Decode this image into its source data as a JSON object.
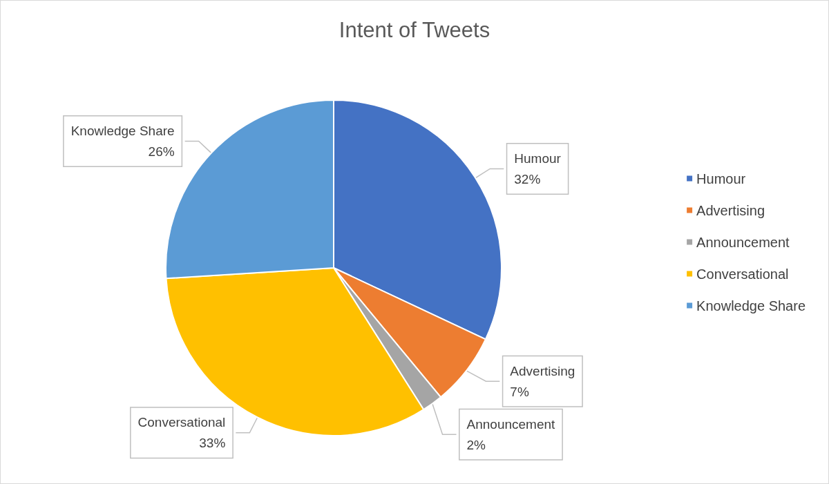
{
  "chart_data": {
    "type": "pie",
    "title": "Intent of Tweets",
    "categories": [
      "Humour",
      "Advertising",
      "Announcement",
      "Conversational",
      "Knowledge Share"
    ],
    "values": [
      32,
      7,
      2,
      33,
      26
    ],
    "value_labels": [
      "32%",
      "7%",
      "2%",
      "33%",
      "26%"
    ],
    "colors": [
      "#4472c4",
      "#ed7d31",
      "#a5a5a5",
      "#ffc000",
      "#5b9bd5"
    ],
    "legend": "right"
  }
}
